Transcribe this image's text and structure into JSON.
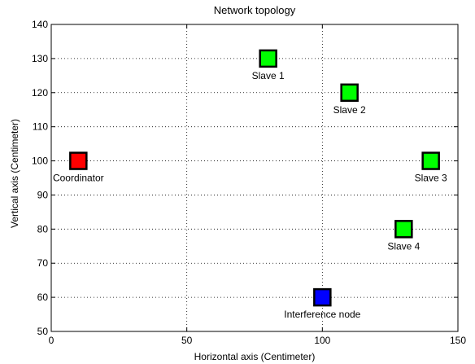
{
  "chart_data": {
    "type": "scatter",
    "title": "Network topology",
    "xlabel": "Horizontal axis (Centimeter)",
    "ylabel": "Vertical axis (Centimeter)",
    "xlim": [
      0,
      150
    ],
    "ylim": [
      50,
      140
    ],
    "xticks": [
      0,
      50,
      100,
      150
    ],
    "yticks": [
      50,
      60,
      70,
      80,
      90,
      100,
      110,
      120,
      130,
      140
    ],
    "grid": true,
    "points": [
      {
        "label": "Coordinator",
        "x": 10,
        "y": 100,
        "color": "#ff0000",
        "label_pos": "below"
      },
      {
        "label": "Slave 1",
        "x": 80,
        "y": 130,
        "color": "#00ff00",
        "label_pos": "below"
      },
      {
        "label": "Slave 2",
        "x": 110,
        "y": 120,
        "color": "#00ff00",
        "label_pos": "below"
      },
      {
        "label": "Slave 3",
        "x": 140,
        "y": 100,
        "color": "#00ff00",
        "label_pos": "below"
      },
      {
        "label": "Slave 4",
        "x": 130,
        "y": 80,
        "color": "#00ff00",
        "label_pos": "below"
      },
      {
        "label": "Interference node",
        "x": 100,
        "y": 60,
        "color": "#0000ff",
        "label_pos": "below"
      }
    ]
  }
}
